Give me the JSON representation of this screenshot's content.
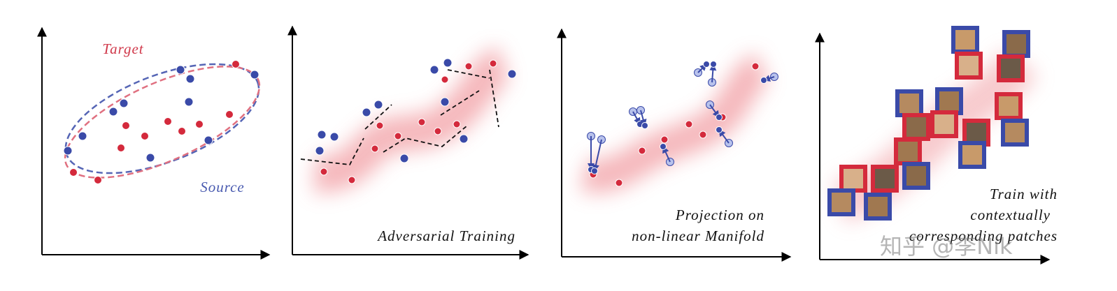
{
  "panels": [
    {
      "labels": [
        "Target",
        "Source"
      ]
    },
    {
      "caption": [
        "Adversarial Training"
      ]
    },
    {
      "caption": [
        "Projection on",
        "non-linear Manifold"
      ]
    },
    {
      "caption": [
        "Train with",
        "contextually",
        "corresponding patches"
      ]
    }
  ],
  "watermark": "知乎 @李Nik"
}
